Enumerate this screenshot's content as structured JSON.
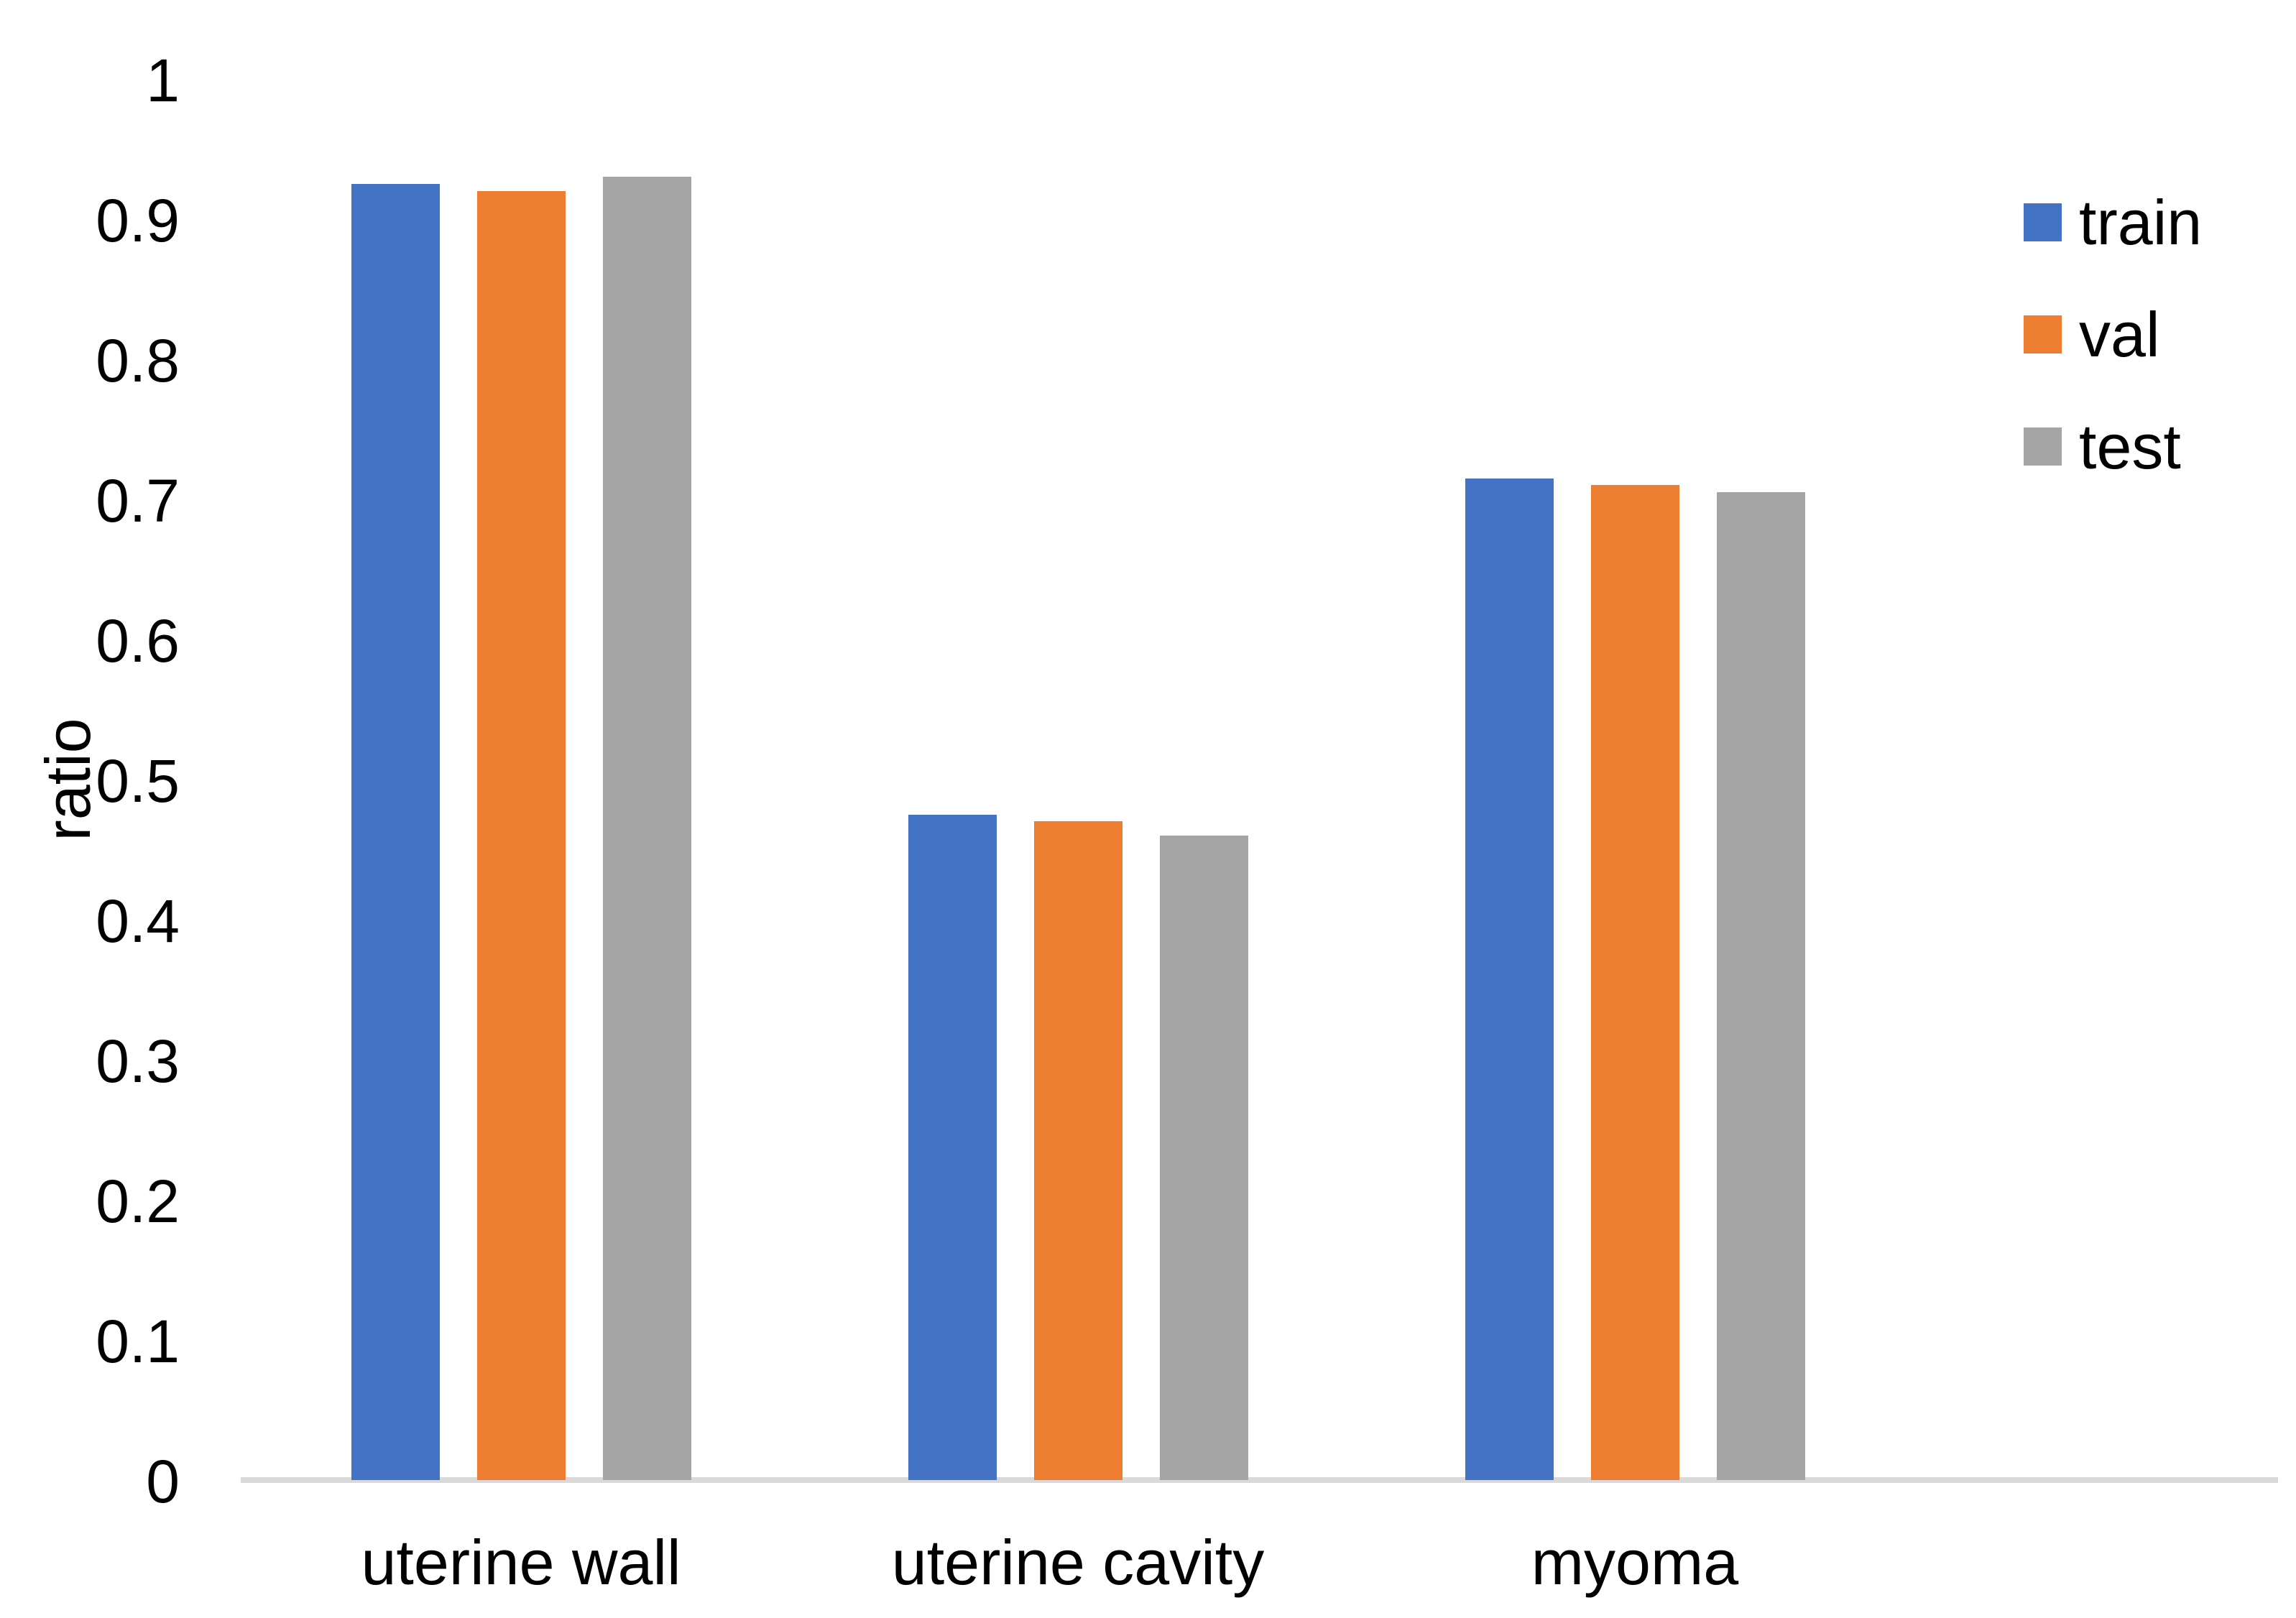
{
  "chart_data": {
    "type": "bar",
    "title": "",
    "xlabel": "",
    "ylabel": "ratio",
    "categories": [
      "uterine wall",
      "uterine cavity",
      "myoma"
    ],
    "series": [
      {
        "name": "train",
        "color": "#4472C4",
        "values": [
          0.925,
          0.475,
          0.715
        ]
      },
      {
        "name": "val",
        "color": "#ED7D31",
        "values": [
          0.92,
          0.47,
          0.71
        ]
      },
      {
        "name": "test",
        "color": "#A5A5A5",
        "values": [
          0.93,
          0.46,
          0.705
        ]
      }
    ],
    "ylim": [
      0,
      1
    ],
    "ytick_step": 0.1,
    "ytick_labels": [
      "0",
      "0.1",
      "0.2",
      "0.3",
      "0.4",
      "0.5",
      "0.6",
      "0.7",
      "0.8",
      "0.9",
      "1"
    ],
    "grid": false,
    "tick_marks": false,
    "legend_position": "upper-right",
    "axis_line_color": "#D9D9D9",
    "text_color": "#000000",
    "background_color": "#FFFFFF"
  }
}
